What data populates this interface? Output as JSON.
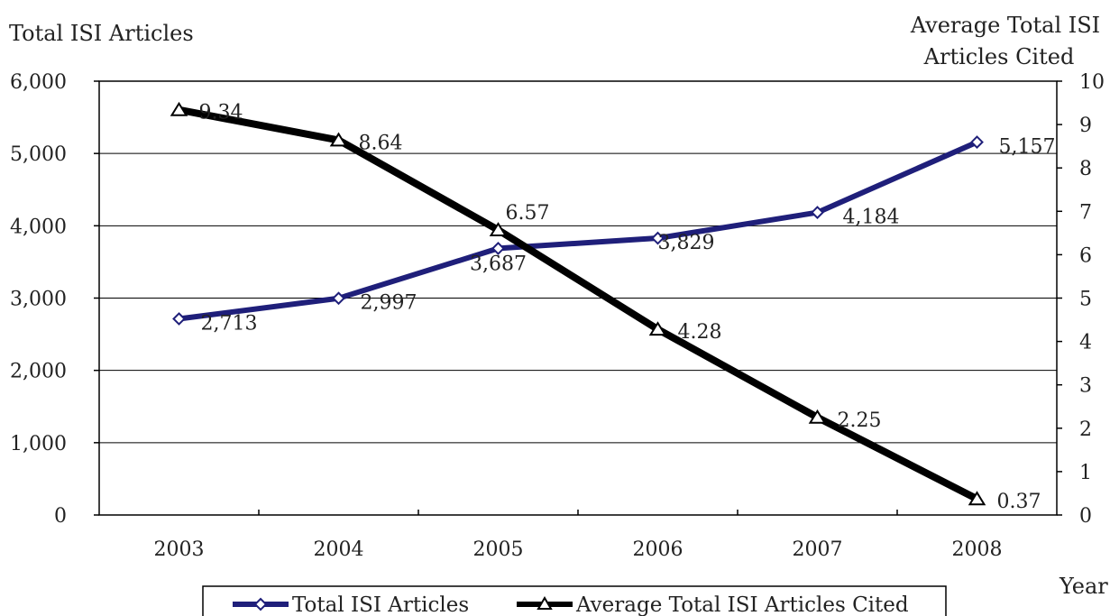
{
  "chart_data": {
    "type": "line",
    "x": [
      "2003",
      "2004",
      "2005",
      "2006",
      "2007",
      "2008"
    ],
    "xlabel": "Year",
    "ylabel_left": "Total ISI Articles",
    "ylabel_right": [
      "Average Total ISI",
      "Articles Cited"
    ],
    "ylim_left": [
      0,
      6000
    ],
    "ylim_right": [
      0,
      10
    ],
    "yticks_left": [
      "0",
      "1,000",
      "2,000",
      "3,000",
      "4,000",
      "5,000",
      "6,000"
    ],
    "yticks_right": [
      "0",
      "1",
      "2",
      "3",
      "4",
      "5",
      "6",
      "7",
      "8",
      "9",
      "10"
    ],
    "grid": true,
    "legend_position": "bottom",
    "series": [
      {
        "name": "Total ISI Articles",
        "axis": "left",
        "marker": "diamond",
        "color": "#1f1f7a",
        "values": [
          2713,
          2997,
          3687,
          3829,
          4184,
          5157
        ],
        "labels": [
          "2,713",
          "2,997",
          "3,687",
          "3,829",
          "4,184",
          "5,157"
        ]
      },
      {
        "name": "Average Total ISI Articles Cited",
        "axis": "right",
        "marker": "triangle",
        "color": "#000000",
        "values": [
          9.34,
          8.64,
          6.57,
          4.28,
          2.25,
          0.37
        ],
        "labels": [
          "9.34",
          "8.64",
          "6.57",
          "4.28",
          "2.25",
          "0.37"
        ]
      }
    ]
  }
}
